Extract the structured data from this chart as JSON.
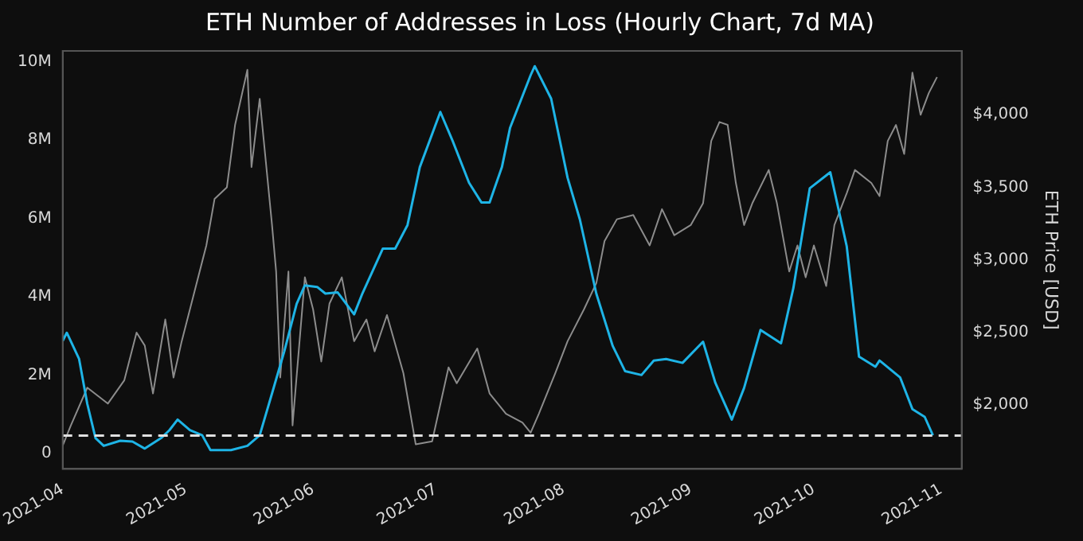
{
  "chart_data": {
    "type": "line",
    "title": "ETH Number of Addresses in Loss (Hourly Chart, 7d MA)",
    "y2label": "ETH Price [USD]",
    "marker": "none",
    "grid": false,
    "legend": false,
    "line_style": "solid",
    "xlim": [
      "2021-04-01",
      "2021-11-06"
    ],
    "xticks": [
      {
        "value": "2021-04-01",
        "label": "2021-04"
      },
      {
        "value": "2021-05-01",
        "label": "2021-05"
      },
      {
        "value": "2021-06-01",
        "label": "2021-06"
      },
      {
        "value": "2021-07-01",
        "label": "2021-07"
      },
      {
        "value": "2021-08-01",
        "label": "2021-08"
      },
      {
        "value": "2021-09-01",
        "label": "2021-09"
      },
      {
        "value": "2021-10-01",
        "label": "2021-10"
      },
      {
        "value": "2021-11-01",
        "label": "2021-11"
      }
    ],
    "ylim": [
      -400000,
      10280000
    ],
    "yticks": [
      0,
      {
        "value": 2000000,
        "label": "2M"
      },
      {
        "value": 4000000,
        "label": "4M"
      },
      {
        "value": 6000000,
        "label": "6M"
      },
      {
        "value": 8000000,
        "label": "8M"
      },
      {
        "value": 10000000,
        "label": "10M"
      }
    ],
    "y2lim": [
      1560,
      4440
    ],
    "y2ticks": [
      {
        "value": 2000,
        "label": "$2,000"
      },
      {
        "value": 2500,
        "label": "$2,500"
      },
      {
        "value": 3000,
        "label": "$3,000"
      },
      {
        "value": 3500,
        "label": "$3,500"
      },
      {
        "value": 4000,
        "label": "$4,000"
      }
    ],
    "ref_lines": [
      {
        "axis": "y",
        "value": 450000,
        "color": "#e0e0e0",
        "line_style": "dashed"
      }
    ],
    "series": [
      {
        "axis": "y2",
        "color": "#8c8c8c",
        "x": [
          "2021-04-01",
          "2021-04-03",
          "2021-04-07",
          "2021-04-12",
          "2021-04-16",
          "2021-04-19",
          "2021-04-21",
          "2021-04-23",
          "2021-04-26",
          "2021-04-28",
          "2021-04-30",
          "2021-05-03",
          "2021-05-06",
          "2021-05-08",
          "2021-05-11",
          "2021-05-13",
          "2021-05-16",
          "2021-05-17",
          "2021-05-19",
          "2021-05-20",
          "2021-05-22",
          "2021-05-23",
          "2021-05-24",
          "2021-05-26",
          "2021-05-27",
          "2021-05-30",
          "2021-06-01",
          "2021-06-03",
          "2021-06-05",
          "2021-06-08",
          "2021-06-11",
          "2021-06-14",
          "2021-06-16",
          "2021-06-19",
          "2021-06-23",
          "2021-06-26",
          "2021-06-30",
          "2021-07-04",
          "2021-07-06",
          "2021-07-11",
          "2021-07-14",
          "2021-07-18",
          "2021-07-22",
          "2021-07-24",
          "2021-07-26",
          "2021-07-28",
          "2021-07-30",
          "2021-08-02",
          "2021-08-06",
          "2021-08-09",
          "2021-08-11",
          "2021-08-14",
          "2021-08-18",
          "2021-08-22",
          "2021-08-25",
          "2021-08-28",
          "2021-09-01",
          "2021-09-04",
          "2021-09-06",
          "2021-09-08",
          "2021-09-10",
          "2021-09-12",
          "2021-09-14",
          "2021-09-16",
          "2021-09-20",
          "2021-09-22",
          "2021-09-25",
          "2021-09-27",
          "2021-09-29",
          "2021-10-01",
          "2021-10-04",
          "2021-10-06",
          "2021-10-09",
          "2021-10-11",
          "2021-10-15",
          "2021-10-17",
          "2021-10-19",
          "2021-10-21",
          "2021-10-23",
          "2021-10-25",
          "2021-10-27",
          "2021-10-29",
          "2021-10-31"
        ],
        "values": [
          1720,
          1860,
          2120,
          2010,
          2170,
          2500,
          2410,
          2080,
          2590,
          2190,
          2440,
          2770,
          3100,
          3420,
          3500,
          3930,
          4310,
          3640,
          4110,
          3820,
          3240,
          2920,
          2190,
          2920,
          1860,
          2880,
          2660,
          2300,
          2700,
          2880,
          2440,
          2590,
          2370,
          2620,
          2220,
          1730,
          1750,
          2260,
          2150,
          2390,
          2080,
          1940,
          1880,
          1810,
          1940,
          2080,
          2220,
          2440,
          2660,
          2840,
          3130,
          3280,
          3310,
          3100,
          3350,
          3170,
          3240,
          3390,
          3820,
          3950,
          3930,
          3530,
          3240,
          3390,
          3620,
          3390,
          2920,
          3100,
          2880,
          3100,
          2820,
          3240,
          3460,
          3620,
          3530,
          3440,
          3820,
          3930,
          3730,
          4290,
          4000,
          4150,
          4260
        ]
      },
      {
        "axis": "y",
        "color": "#1eb4e6",
        "x": [
          "2021-04-01",
          "2021-04-02",
          "2021-04-05",
          "2021-04-07",
          "2021-04-09",
          "2021-04-11",
          "2021-04-15",
          "2021-04-18",
          "2021-04-21",
          "2021-04-25",
          "2021-04-27",
          "2021-04-29",
          "2021-05-02",
          "2021-05-05",
          "2021-05-07",
          "2021-05-12",
          "2021-05-16",
          "2021-05-19",
          "2021-05-22",
          "2021-05-25",
          "2021-05-28",
          "2021-05-30",
          "2021-06-02",
          "2021-06-04",
          "2021-06-07",
          "2021-06-11",
          "2021-06-13",
          "2021-06-18",
          "2021-06-21",
          "2021-06-24",
          "2021-06-27",
          "2021-07-02",
          "2021-07-05",
          "2021-07-09",
          "2021-07-12",
          "2021-07-14",
          "2021-07-17",
          "2021-07-19",
          "2021-07-24",
          "2021-07-25",
          "2021-07-29",
          "2021-08-02",
          "2021-08-05",
          "2021-08-09",
          "2021-08-13",
          "2021-08-16",
          "2021-08-20",
          "2021-08-23",
          "2021-08-26",
          "2021-08-30",
          "2021-09-04",
          "2021-09-07",
          "2021-09-11",
          "2021-09-14",
          "2021-09-18",
          "2021-09-23",
          "2021-09-26",
          "2021-09-30",
          "2021-10-05",
          "2021-10-09",
          "2021-10-12",
          "2021-10-16",
          "2021-10-17",
          "2021-10-22",
          "2021-10-25",
          "2021-10-28",
          "2021-10-30"
        ],
        "values": [
          2870000,
          3080000,
          2410000,
          1260000,
          390000,
          190000,
          320000,
          300000,
          120000,
          390000,
          590000,
          860000,
          590000,
          460000,
          80000,
          80000,
          190000,
          460000,
          1530000,
          2610000,
          3820000,
          4290000,
          4250000,
          4080000,
          4110000,
          3550000,
          4080000,
          5230000,
          5230000,
          5830000,
          7310000,
          8720000,
          7980000,
          6910000,
          6410000,
          6410000,
          7310000,
          8320000,
          9660000,
          9890000,
          9060000,
          7040000,
          5970000,
          4080000,
          2740000,
          2100000,
          2000000,
          2370000,
          2410000,
          2310000,
          2850000,
          1800000,
          860000,
          1670000,
          3150000,
          2810000,
          4220000,
          6770000,
          7180000,
          5290000,
          2470000,
          2210000,
          2370000,
          1940000,
          1130000,
          930000,
          460000
        ]
      }
    ]
  }
}
